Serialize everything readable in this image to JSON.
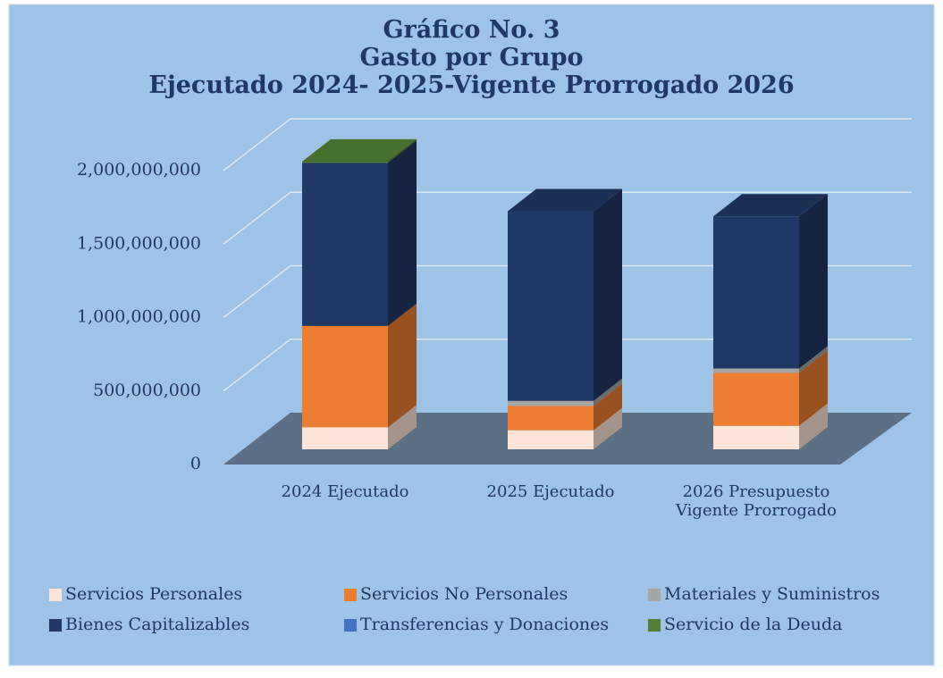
{
  "chart_data": {
    "type": "bar3d_stacked",
    "title": "Gráfico No. 3\nGasto por Grupo\nEjecutado 2024- 2025-Vigente Prorrogado 2026",
    "categories": [
      "2024 Ejecutado",
      "2025 Ejecutado",
      "2026 Presupuesto\nVigente Prorrogado"
    ],
    "series": [
      {
        "name": "Servicios Personales",
        "color": "#fce4d6",
        "values": [
          150000000,
          130000000,
          160000000
        ]
      },
      {
        "name": "Servicios No Personales",
        "color": "#ed7d31",
        "values": [
          690000000,
          165000000,
          360000000
        ]
      },
      {
        "name": "Materiales y Suministros",
        "color": "#a5a5a5",
        "values": [
          0,
          35000000,
          30000000
        ]
      },
      {
        "name": "Bienes Capitalizables",
        "color": "#1f3864",
        "values": [
          1110000000,
          1290000000,
          1035000000
        ]
      },
      {
        "name": "Transferencias y Donaciones",
        "color": "#4472c4",
        "values": [
          0,
          0,
          0
        ]
      },
      {
        "name": "Servicio de la Deuda",
        "color": "#548235",
        "values": [
          8000000,
          0,
          0
        ]
      }
    ],
    "ylim": [
      0,
      2300000000
    ],
    "yticks": [
      0,
      {
        "value": 500000000,
        "label": "500,000,000"
      },
      {
        "value": 1000000000,
        "label": "1,000,000,000"
      },
      {
        "value": 1500000000,
        "label": "1,500,000,000"
      },
      {
        "value": 2000000000,
        "label": "2,000,000,000"
      }
    ],
    "grid": true,
    "legend": "bottom"
  }
}
